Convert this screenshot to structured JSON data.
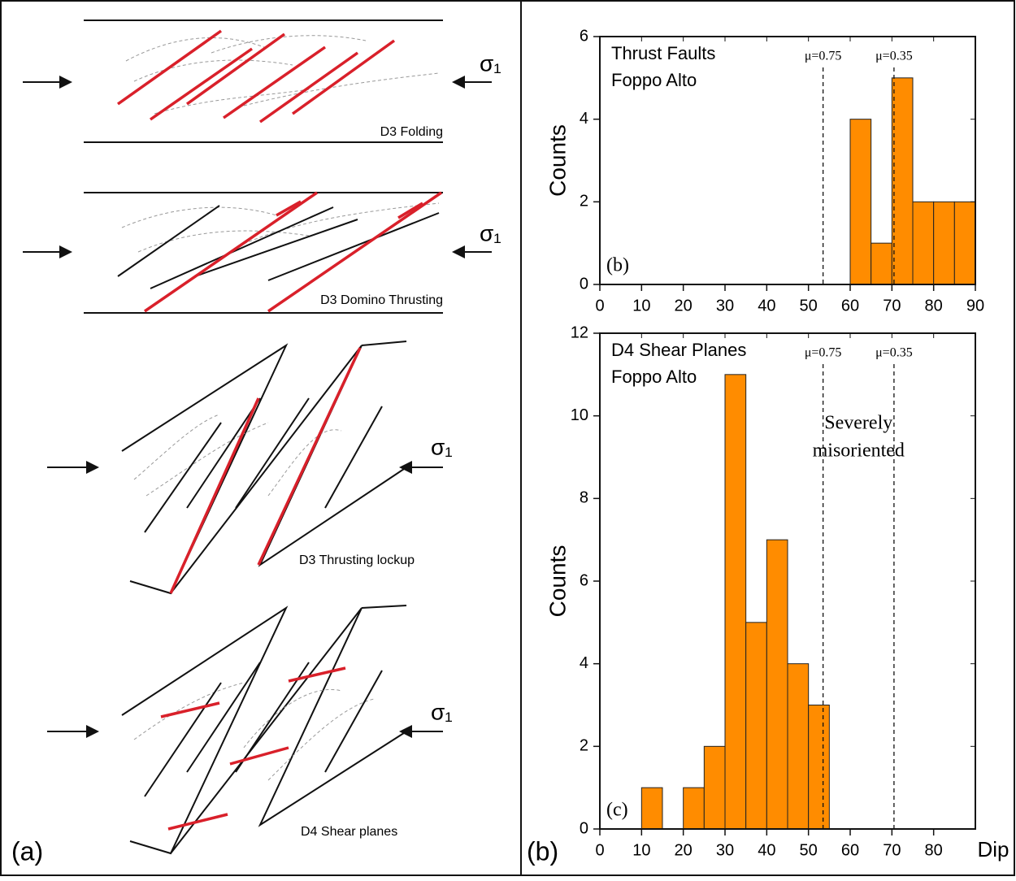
{
  "diagram": {
    "panel_label": "(a)",
    "stages": [
      {
        "label": "D3 Folding",
        "stress": "σ₁"
      },
      {
        "label": "D3 Domino Thrusting",
        "stress": "σ₁"
      },
      {
        "label": "D3 Thrusting lockup",
        "stress": "σ₁"
      },
      {
        "label": "D4 Shear planes",
        "stress": "σ₁"
      }
    ]
  },
  "figure": {
    "panel_label": "(b)"
  },
  "chart_data": [
    {
      "type": "histogram",
      "title": "Thrust Faults",
      "subtitle": "Foppo Alto",
      "ylabel": "Counts",
      "panel_label": "(b)",
      "bins": [
        60,
        65,
        70,
        75,
        80,
        85,
        90
      ],
      "values": [
        4,
        1,
        5,
        2,
        2,
        2
      ],
      "color": "#ff8c00",
      "xlim": [
        0,
        90
      ],
      "xticks": [
        0,
        10,
        20,
        30,
        40,
        50,
        60,
        70,
        80,
        90
      ],
      "ylim": [
        0,
        6
      ],
      "yticks": [
        0,
        2,
        4,
        6
      ],
      "reference_lines": [
        {
          "value": 53.5,
          "label": "μ=0.75"
        },
        {
          "value": 70.5,
          "label": "μ=0.35"
        }
      ]
    },
    {
      "type": "histogram",
      "title": "D4 Shear Planes",
      "subtitle": "Foppo Alto",
      "ylabel": "Counts",
      "xlabel": "Dip",
      "panel_label": "(c)",
      "bins": [
        10,
        15,
        20,
        25,
        30,
        35,
        40,
        45,
        50,
        55
      ],
      "values": [
        1,
        0,
        1,
        2,
        11,
        5,
        7,
        4,
        3
      ],
      "color": "#ff8c00",
      "xlim": [
        0,
        90
      ],
      "xticks": [
        0,
        10,
        20,
        30,
        40,
        50,
        60,
        70,
        80
      ],
      "ylim": [
        0,
        12
      ],
      "yticks": [
        0,
        2,
        4,
        6,
        8,
        10,
        12
      ],
      "reference_lines": [
        {
          "value": 53.5,
          "label": "μ=0.75"
        },
        {
          "value": 70.5,
          "label": "μ=0.35"
        }
      ],
      "annotation": [
        "Severely",
        "misoriented"
      ]
    }
  ]
}
